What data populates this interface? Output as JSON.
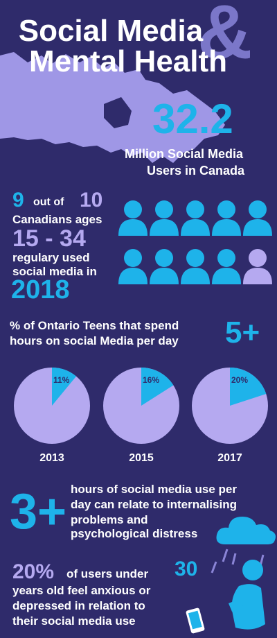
{
  "title": {
    "line1": "Social Media",
    "line2": "Mental Health",
    "ampersand": "&"
  },
  "users": {
    "value": "32.2",
    "caption_line1": "Million Social Media",
    "caption_line2": "Users in Canada"
  },
  "ratio": {
    "nine": "9",
    "out_of": "out of",
    "ten": "10",
    "line2": "Canadians ages",
    "ages": "15 - 34",
    "line4": "regulary used",
    "line5": "social media in",
    "year": "2018"
  },
  "people": {
    "total": 10,
    "highlighted": 9,
    "color_on": "#1eb3ea",
    "color_off": "#b5a9f0"
  },
  "ontario": {
    "line1": "% of Ontario Teens that spend",
    "line2": "hours on social Media per day",
    "hours": "5+"
  },
  "chart_data": {
    "type": "pie",
    "charts": [
      {
        "year": "2013",
        "label": "11%",
        "value": 11
      },
      {
        "year": "2015",
        "label": "16%",
        "value": 16
      },
      {
        "year": "2017",
        "label": "20%",
        "value": 20
      }
    ],
    "slice_color": "#1eb3ea",
    "rest_color": "#b5a9f0"
  },
  "three_plus": {
    "value": "3+",
    "line1": "hours of social media use per",
    "line2": "day can relate to internalising",
    "line3": "problems and",
    "line4": "psychological distress"
  },
  "anxious": {
    "percent": "20%",
    "line1": "of users under",
    "age": "30",
    "line2": "years old feel anxious or",
    "line3": "depressed in relation to",
    "line4": "their social media use"
  },
  "colors": {
    "background": "#2f2b6b",
    "accent_blue": "#1eb3ea",
    "lavender": "#b5a9f0",
    "map": "#9f97e6"
  }
}
